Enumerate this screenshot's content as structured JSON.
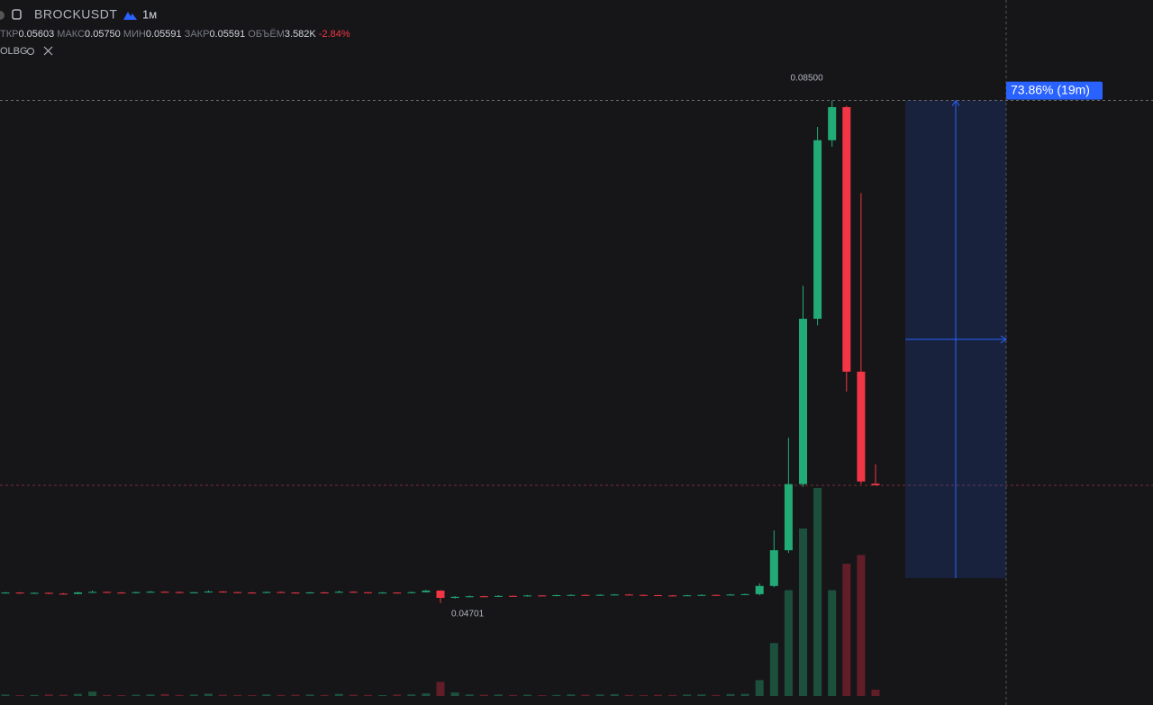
{
  "header": {
    "symbol": "BROCKUSDT",
    "interval": "1м",
    "ohlc": [
      {
        "label": "ТКР",
        "value": "0.05603"
      },
      {
        "label": "МАКС",
        "value": "0.05750"
      },
      {
        "label": "МИН",
        "value": "0.05591"
      },
      {
        "label": "ЗАКР",
        "value": "0.05591"
      },
      {
        "label": "ОБЪЁМ",
        "value": "3.582K"
      }
    ],
    "change": "-2.84%",
    "indicator": "OLBG"
  },
  "chart_data": {
    "type": "candlestick",
    "ylim": [
      0.0393,
      0.0926
    ],
    "volume_lim": [
      0,
      120000
    ],
    "up_color": "#22ab76",
    "down_color": "#f23645",
    "up_volume_color": "#1d5a43",
    "down_volume_color": "#6e1f2b",
    "open": [
      0.04778,
      0.0478,
      0.04775,
      0.04778,
      0.04772,
      0.0477,
      0.04781,
      0.04785,
      0.0478,
      0.04777,
      0.04783,
      0.04786,
      0.04784,
      0.04779,
      0.04782,
      0.04788,
      0.04783,
      0.0478,
      0.04778,
      0.04784,
      0.0478,
      0.04777,
      0.04781,
      0.04779,
      0.04786,
      0.04782,
      0.04778,
      0.0478,
      0.04776,
      0.04783,
      0.04795,
      0.0474,
      0.04748,
      0.04752,
      0.0475,
      0.04755,
      0.04753,
      0.04758,
      0.04756,
      0.0476,
      0.04762,
      0.04759,
      0.04763,
      0.04765,
      0.04762,
      0.0476,
      0.04758,
      0.04756,
      0.04759,
      0.04762,
      0.0476,
      0.04765,
      0.04768,
      0.0483,
      0.051,
      0.056,
      0.0685,
      0.082,
      0.0845,
      0.0645,
      0.05603
    ],
    "high": [
      0.04784,
      0.04783,
      0.04782,
      0.0478,
      0.04776,
      0.04785,
      0.04795,
      0.04788,
      0.04784,
      0.04787,
      0.04792,
      0.04789,
      0.04787,
      0.04786,
      0.04796,
      0.0479,
      0.04786,
      0.04783,
      0.04788,
      0.04787,
      0.04783,
      0.04785,
      0.04784,
      0.04794,
      0.04789,
      0.04785,
      0.04784,
      0.04782,
      0.04787,
      0.048,
      0.04798,
      0.04753,
      0.04757,
      0.04755,
      0.04759,
      0.04758,
      0.04762,
      0.04761,
      0.04764,
      0.04766,
      0.04765,
      0.04767,
      0.04769,
      0.04768,
      0.04765,
      0.04763,
      0.04761,
      0.04763,
      0.04766,
      0.04765,
      0.04769,
      0.04772,
      0.0485,
      0.0525,
      0.0595,
      0.071,
      0.083,
      0.085,
      0.0846,
      0.078,
      0.0575
    ],
    "low": [
      0.04774,
      0.04771,
      0.04772,
      0.04769,
      0.04766,
      0.04768,
      0.04779,
      0.04777,
      0.04774,
      0.04775,
      0.0478,
      0.04781,
      0.04776,
      0.04777,
      0.0478,
      0.0478,
      0.04777,
      0.04775,
      0.04776,
      0.04777,
      0.04773,
      0.04775,
      0.04776,
      0.04777,
      0.04779,
      0.04775,
      0.04776,
      0.04772,
      0.04774,
      0.0478,
      0.04701,
      0.04735,
      0.04745,
      0.04746,
      0.04747,
      0.0475,
      0.0475,
      0.04753,
      0.04753,
      0.04757,
      0.04756,
      0.04756,
      0.0476,
      0.04759,
      0.04757,
      0.04755,
      0.04753,
      0.04753,
      0.04756,
      0.04757,
      0.04757,
      0.04762,
      0.0476,
      0.0482,
      0.0508,
      0.0558,
      0.068,
      0.0815,
      0.063,
      0.056,
      0.05591
    ],
    "close": [
      0.0478,
      0.04775,
      0.04778,
      0.04772,
      0.0477,
      0.04781,
      0.04785,
      0.0478,
      0.04777,
      0.04783,
      0.04786,
      0.04784,
      0.04779,
      0.04782,
      0.04788,
      0.04783,
      0.0478,
      0.04778,
      0.04784,
      0.0478,
      0.04777,
      0.04781,
      0.04779,
      0.04786,
      0.04782,
      0.04778,
      0.0478,
      0.04776,
      0.04783,
      0.04795,
      0.0474,
      0.04748,
      0.04752,
      0.0475,
      0.04755,
      0.04753,
      0.04758,
      0.04756,
      0.0476,
      0.04762,
      0.04759,
      0.04763,
      0.04765,
      0.04762,
      0.0476,
      0.04758,
      0.04756,
      0.04759,
      0.04762,
      0.0476,
      0.04765,
      0.04768,
      0.0483,
      0.051,
      0.056,
      0.0685,
      0.082,
      0.0845,
      0.0645,
      0.0562,
      0.05591
    ],
    "volume": [
      800,
      500,
      600,
      900,
      700,
      1200,
      2500,
      600,
      500,
      700,
      900,
      1100,
      600,
      800,
      1300,
      700,
      600,
      500,
      900,
      600,
      700,
      800,
      600,
      1200,
      700,
      600,
      500,
      800,
      900,
      1500,
      8000,
      2000,
      900,
      700,
      800,
      600,
      700,
      500,
      600,
      900,
      700,
      800,
      1000,
      600,
      500,
      700,
      600,
      800,
      900,
      600,
      1100,
      1200,
      9000,
      30000,
      60000,
      95000,
      118000,
      60000,
      75000,
      80000,
      3582
    ],
    "high_marker": {
      "value": 0.085,
      "label": "0.08500"
    },
    "low_marker": {
      "value": 0.04701,
      "label": "0.04701"
    },
    "measure": {
      "from": 0.04889,
      "to": 0.085,
      "label": "73.86% (19m)"
    }
  }
}
